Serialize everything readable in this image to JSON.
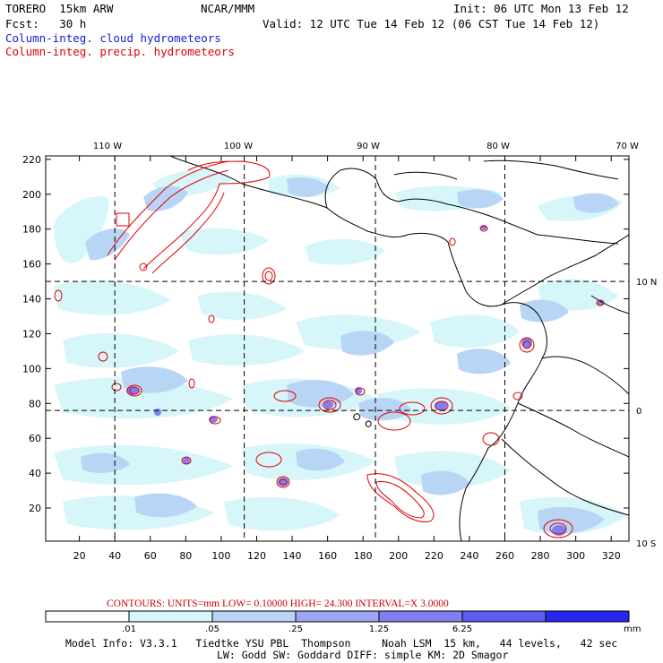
{
  "header": {
    "model_title": "TORERO  15km ARW",
    "center": "NCAR/MMM",
    "init": "Init: 06 UTC Mon 13 Feb 12",
    "fcst": "Fcst:   30 h",
    "valid": "Valid: 12 UTC Tue 14 Feb 12 (06 CST Tue 14 Feb 12)",
    "field1": "Column-integ. cloud hydrometeors",
    "field2": "Column-integ. precip. hydrometeors",
    "field1_color": "#1a1ad6",
    "field2_color": "#e00000"
  },
  "map": {
    "lon_labels": [
      "110 W",
      "100 W",
      "90 W",
      "80 W",
      "70 W"
    ],
    "lat_labels": [
      "10 N",
      "0",
      "10 S"
    ],
    "x_ticks": [
      "20",
      "40",
      "60",
      "80",
      "100",
      "120",
      "140",
      "160",
      "180",
      "200",
      "220",
      "240",
      "260",
      "280",
      "300",
      "320"
    ],
    "y_ticks": [
      "20",
      "40",
      "60",
      "80",
      "100",
      "120",
      "140",
      "160",
      "180",
      "200",
      "220"
    ],
    "x_range": [
      1,
      330
    ],
    "y_range": [
      1,
      222
    ],
    "grid_x": [
      40,
      113,
      187,
      260
    ],
    "grid_y": [
      76,
      150
    ]
  },
  "contour_info": {
    "text": "CONTOURS:  UNITS=mm  LOW= 0.10000      HIGH=  24.300      INTERVAL=X  3.0000",
    "color": "#cc0000"
  },
  "colorbar": {
    "labels": [
      ".01",
      ".05",
      ".25",
      "1.25",
      "6.25"
    ],
    "unit": "mm",
    "colors": [
      "#ffffff",
      "#d6f6fa",
      "#b9d5f6",
      "#9ea6f4",
      "#7f7ff2",
      "#5c5cf0",
      "#2626ee"
    ]
  },
  "footer": {
    "line1": "Model Info: V3.3.1   Tiedtke YSU PBL  Thompson     Noah LSM  15 km,   44 levels,   42 sec",
    "line2": "LW: Godd SW: Goddard DIFF: simple KM: 2D Smagor"
  },
  "icons": {
    "crosshair": "origin-marker-icon"
  }
}
